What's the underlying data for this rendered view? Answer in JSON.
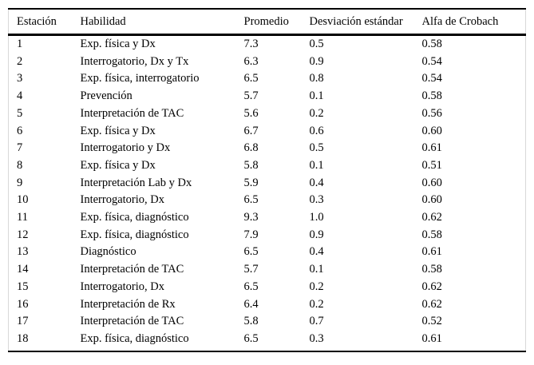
{
  "colors": {
    "background": "#ffffff",
    "rule": "#000000",
    "frame": "#d9d9d9"
  },
  "table": {
    "columns": [
      "Estación",
      "Habilidad",
      "Promedio",
      "Desviación estándar",
      "Alfa de Crobach"
    ],
    "rows": [
      {
        "estacion": "1",
        "habilidad": "Exp. física y Dx",
        "promedio": "7.3",
        "desviacion": "0.5",
        "alfa": "0.58"
      },
      {
        "estacion": "2",
        "habilidad": "Interrogatorio, Dx y Tx",
        "promedio": "6.3",
        "desviacion": "0.9",
        "alfa": "0.54"
      },
      {
        "estacion": "3",
        "habilidad": "Exp. física, interrogatorio",
        "promedio": "6.5",
        "desviacion": "0.8",
        "alfa": "0.54"
      },
      {
        "estacion": "4",
        "habilidad": "Prevención",
        "promedio": "5.7",
        "desviacion": "0.1",
        "alfa": "0.58"
      },
      {
        "estacion": "5",
        "habilidad": "Interpretación de TAC",
        "promedio": "5.6",
        "desviacion": "0.2",
        "alfa": "0.56"
      },
      {
        "estacion": "6",
        "habilidad": "Exp. física y Dx",
        "promedio": "6.7",
        "desviacion": "0.6",
        "alfa": "0.60"
      },
      {
        "estacion": "7",
        "habilidad": "Interrogatorio y Dx",
        "promedio": "6.8",
        "desviacion": "0.5",
        "alfa": "0.61"
      },
      {
        "estacion": "8",
        "habilidad": "Exp. física y Dx",
        "promedio": "5.8",
        "desviacion": "0.1",
        "alfa": "0.51"
      },
      {
        "estacion": "9",
        "habilidad": "Interpretación Lab y Dx",
        "promedio": "5.9",
        "desviacion": "0.4",
        "alfa": "0.60"
      },
      {
        "estacion": "10",
        "habilidad": "Interrogatorio, Dx",
        "promedio": "6.5",
        "desviacion": "0.3",
        "alfa": "0.60"
      },
      {
        "estacion": "11",
        "habilidad": "Exp. física, diagnóstico",
        "promedio": "9.3",
        "desviacion": "1.0",
        "alfa": "0.62"
      },
      {
        "estacion": "12",
        "habilidad": "Exp. física, diagnóstico",
        "promedio": "7.9",
        "desviacion": "0.9",
        "alfa": "0.58"
      },
      {
        "estacion": "13",
        "habilidad": "Diagnóstico",
        "promedio": "6.5",
        "desviacion": "0.4",
        "alfa": "0.61"
      },
      {
        "estacion": "14",
        "habilidad": "Interpretación de TAC",
        "promedio": "5.7",
        "desviacion": "0.1",
        "alfa": "0.58"
      },
      {
        "estacion": "15",
        "habilidad": "Interrogatorio, Dx",
        "promedio": "6.5",
        "desviacion": "0.2",
        "alfa": "0.62"
      },
      {
        "estacion": "16",
        "habilidad": "Interpretación de Rx",
        "promedio": "6.4",
        "desviacion": "0.2",
        "alfa": "0.62"
      },
      {
        "estacion": "17",
        "habilidad": "Interpretación de TAC",
        "promedio": "5.8",
        "desviacion": "0.7",
        "alfa": "0.52"
      },
      {
        "estacion": "18",
        "habilidad": "Exp. física, diagnóstico",
        "promedio": "6.5",
        "desviacion": "0.3",
        "alfa": "0.61"
      }
    ]
  }
}
